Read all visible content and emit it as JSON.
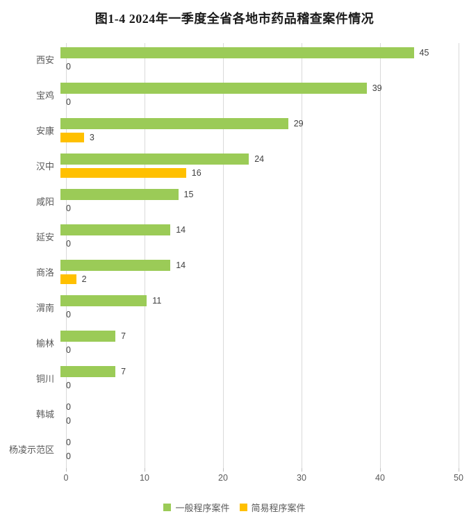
{
  "title": "图1-4 2024年一季度全省各地市药品稽查案件情况",
  "colors": {
    "general_series": "#9bcb57",
    "simple_series": "#ffc000",
    "gridline": "#d9d9d9",
    "category_text": "#595959",
    "value_text": "#404040",
    "title_text": "#1a1a1a"
  },
  "chart_data": {
    "type": "bar",
    "orientation": "horizontal",
    "title": "图1-4 2024年一季度全省各地市药品稽查案件情况",
    "categories": [
      "西安",
      "宝鸡",
      "安康",
      "汉中",
      "咸阳",
      "延安",
      "商洛",
      "渭南",
      "榆林",
      "铜川",
      "韩城",
      "杨凌示范区"
    ],
    "series": [
      {
        "key": "general",
        "name": "一般程序案件",
        "color": "#9bcb57",
        "values": [
          45,
          39,
          29,
          24,
          15,
          14,
          14,
          11,
          7,
          7,
          0,
          0
        ]
      },
      {
        "key": "simple",
        "name": "简易程序案件",
        "color": "#ffc000",
        "values": [
          0,
          0,
          3,
          16,
          0,
          0,
          2,
          0,
          0,
          0,
          0,
          0
        ]
      }
    ],
    "xlim": [
      0,
      50
    ],
    "x_ticks": [
      0,
      10,
      20,
      30,
      40,
      50
    ],
    "data_labels": true,
    "grid": "vertical",
    "legend_position": "bottom"
  }
}
